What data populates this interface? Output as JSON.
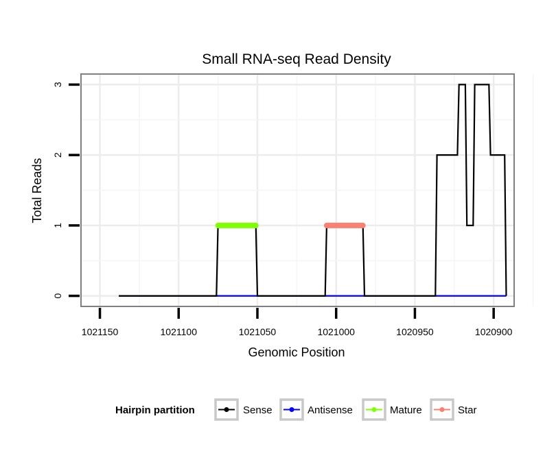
{
  "chart_data": {
    "type": "line",
    "title": "Small RNA-seq Read Density",
    "xlabel": "Genomic Position",
    "ylabel": "Total Reads",
    "x_reversed": true,
    "xlim": [
      1021162,
      1020887
    ],
    "ylim": [
      -0.15,
      3.15
    ],
    "x_ticks": [
      1021150,
      1021100,
      1021050,
      1021000,
      1020950,
      1020900
    ],
    "x_tick_labels": [
      "1021150",
      "1021100",
      "1021050",
      "1021000",
      "1020950",
      "1020900"
    ],
    "y_ticks": [
      0,
      1,
      2,
      3
    ],
    "y_tick_labels": [
      "0",
      "1",
      "2",
      "3"
    ],
    "grid": true,
    "series": [
      {
        "name": "Sense",
        "color": "#000000",
        "x": [
          1021138,
          1021076,
          1021075,
          1021051,
          1021050,
          1021007,
          1021006,
          1020983,
          1020982,
          1020937,
          1020936,
          1020923,
          1020922,
          1020918,
          1020917,
          1020913,
          1020912,
          1020903,
          1020902,
          1020893,
          1020892
        ],
        "y": [
          0,
          0,
          1,
          1,
          0,
          0,
          1,
          1,
          0,
          0,
          2,
          2,
          3,
          3,
          1,
          1,
          3,
          3,
          2,
          2,
          0
        ]
      },
      {
        "name": "Antisense",
        "color": "#0000ff",
        "x": [
          1021138,
          1020892
        ],
        "y": [
          0,
          0
        ]
      },
      {
        "name": "Mature",
        "color": "#7fff00",
        "x": [
          1021075,
          1021051
        ],
        "y": [
          1,
          1
        ]
      },
      {
        "name": "Star",
        "color": "#fa8072",
        "x": [
          1021006,
          1020983
        ],
        "y": [
          1,
          1
        ]
      }
    ],
    "legend": {
      "title": "Hairpin partition",
      "position": "bottom",
      "entries": [
        "Sense",
        "Antisense",
        "Mature",
        "Star"
      ]
    }
  }
}
